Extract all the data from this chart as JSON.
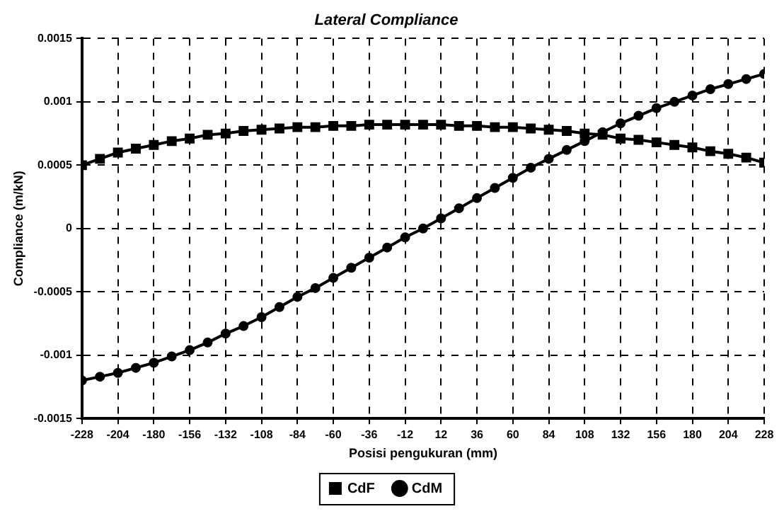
{
  "chart_data": {
    "type": "line",
    "title": "Lateral Compliance",
    "xlabel": "Posisi pengukuran (mm)",
    "ylabel": "Compliance (m/kN)",
    "x": [
      -228,
      -216,
      -204,
      -192,
      -180,
      -168,
      -156,
      -144,
      -132,
      -120,
      -108,
      -96,
      -84,
      -72,
      -60,
      -48,
      -36,
      -24,
      -12,
      0,
      12,
      24,
      36,
      48,
      60,
      72,
      84,
      96,
      108,
      120,
      132,
      144,
      156,
      168,
      180,
      192,
      204,
      216,
      228
    ],
    "xlim": [
      -228,
      228
    ],
    "xticks": [
      -228,
      -204,
      -180,
      -156,
      -132,
      -108,
      -84,
      -60,
      -36,
      -12,
      12,
      36,
      60,
      84,
      108,
      132,
      156,
      180,
      204,
      228
    ],
    "ylim": [
      -0.0015,
      0.0015
    ],
    "yticks": [
      -0.0015,
      -0.001,
      -0.0005,
      0,
      0.0005,
      0.001,
      0.0015
    ],
    "grid": true,
    "legend": "bottom",
    "line_style": "solid",
    "series": [
      {
        "name": "CdF",
        "color": "#000000",
        "marker": "square",
        "values": [
          0.0005,
          0.00055,
          0.0006,
          0.00063,
          0.00066,
          0.00069,
          0.00071,
          0.00074,
          0.00075,
          0.00077,
          0.00078,
          0.00079,
          0.0008,
          0.0008,
          0.00081,
          0.00081,
          0.00082,
          0.00082,
          0.00082,
          0.00082,
          0.00082,
          0.00081,
          0.00081,
          0.0008,
          0.0008,
          0.00079,
          0.00078,
          0.00077,
          0.00075,
          0.00074,
          0.00071,
          0.0007,
          0.00068,
          0.00066,
          0.00064,
          0.00061,
          0.00059,
          0.00056,
          0.00052
        ]
      },
      {
        "name": "CdM",
        "color": "#000000",
        "marker": "circle",
        "values": [
          -0.0012,
          -0.00117,
          -0.00114,
          -0.0011,
          -0.00106,
          -0.00101,
          -0.00096,
          -0.0009,
          -0.00083,
          -0.00077,
          -0.0007,
          -0.00062,
          -0.00054,
          -0.00047,
          -0.00039,
          -0.00031,
          -0.00023,
          -0.00015,
          -7e-05,
          0,
          8e-05,
          0.00016,
          0.00024,
          0.00032,
          0.0004,
          0.00048,
          0.00055,
          0.00062,
          0.00069,
          0.00076,
          0.00083,
          0.00089,
          0.00095,
          0.001,
          0.00105,
          0.0011,
          0.00114,
          0.00118,
          0.00122
        ]
      }
    ]
  }
}
